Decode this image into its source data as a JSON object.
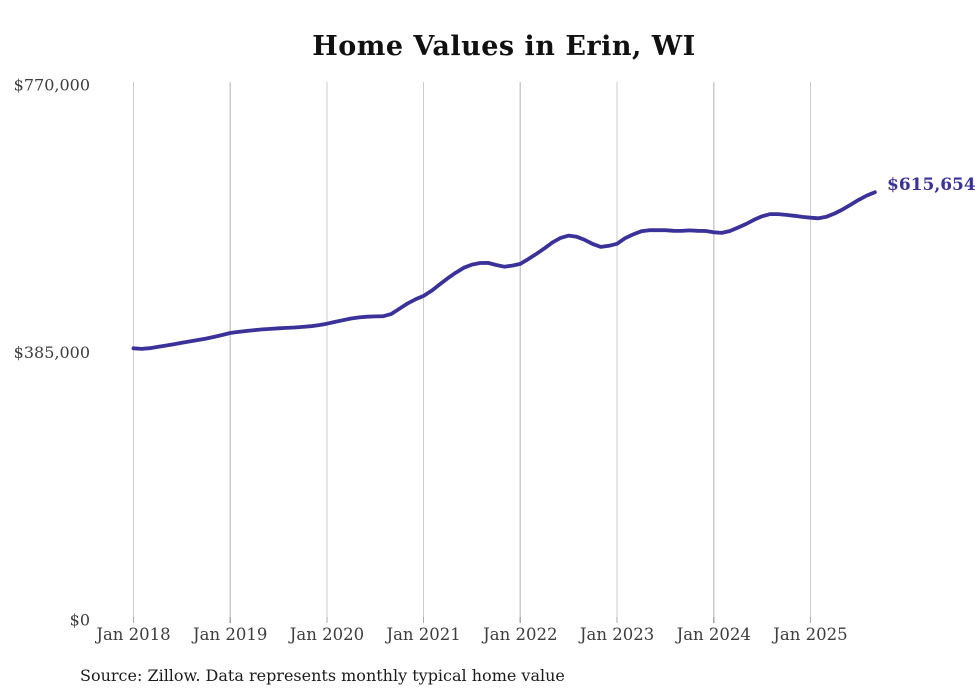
{
  "title": "Home Values in Erin, WI",
  "end_label": "$615,654",
  "source": "Source: Zillow. Data represents monthly typical home value",
  "colors": {
    "accent_line": "#3a3199",
    "grid": "#cbcbcb",
    "tick": "#a9a9a9",
    "axis_text": "#3d3d3d",
    "title_text": "#111111",
    "source_text": "#1c1c1c",
    "background": "#ffffff"
  },
  "chart_data": {
    "type": "line",
    "title": "Home Values in Erin, WI",
    "unit": "USD",
    "frequency": "monthly",
    "x_start": "Jan 2018",
    "x_end": "Sep 2025",
    "x_tick_labels": [
      "Jan 2018",
      "Jan 2019",
      "Jan 2020",
      "Jan 2021",
      "Jan 2022",
      "Jan 2023",
      "Jan 2024",
      "Jan 2025"
    ],
    "y_ticks": [
      0,
      385000,
      770000
    ],
    "y_tick_labels": [
      "$0",
      "$385,000",
      "$770,000"
    ],
    "ylim": [
      0,
      770000
    ],
    "grid": "vertical-yearly",
    "legend": "none",
    "last_value": 615654,
    "last_value_label": "$615,654",
    "series": [
      {
        "name": "Typical home value",
        "values": [
          391000,
          390200,
          391200,
          393000,
          395000,
          397000,
          399000,
          401000,
          403000,
          405000,
          407500,
          410200,
          413000,
          414600,
          416000,
          417200,
          418200,
          419000,
          419800,
          420400,
          421000,
          421800,
          422800,
          424400,
          426500,
          429000,
          431500,
          434000,
          435500,
          436500,
          437000,
          437200,
          440500,
          448000,
          455500,
          461500,
          466500,
          474000,
          483000,
          492000,
          500000,
          507000,
          511500,
          513800,
          514000,
          511000,
          508500,
          510000,
          512500,
          519500,
          527000,
          535000,
          543500,
          550000,
          553300,
          551500,
          547000,
          541000,
          537000,
          538500,
          541500,
          549500,
          555000,
          559500,
          561000,
          561000,
          561000,
          560200,
          560000,
          560800,
          560200,
          559800,
          558000,
          557200,
          559800,
          564800,
          570000,
          576000,
          581000,
          584200,
          584200,
          583000,
          581800,
          580200,
          579000,
          578200,
          580500,
          585000,
          591000,
          597800,
          604800,
          611000,
          615654
        ]
      }
    ]
  }
}
